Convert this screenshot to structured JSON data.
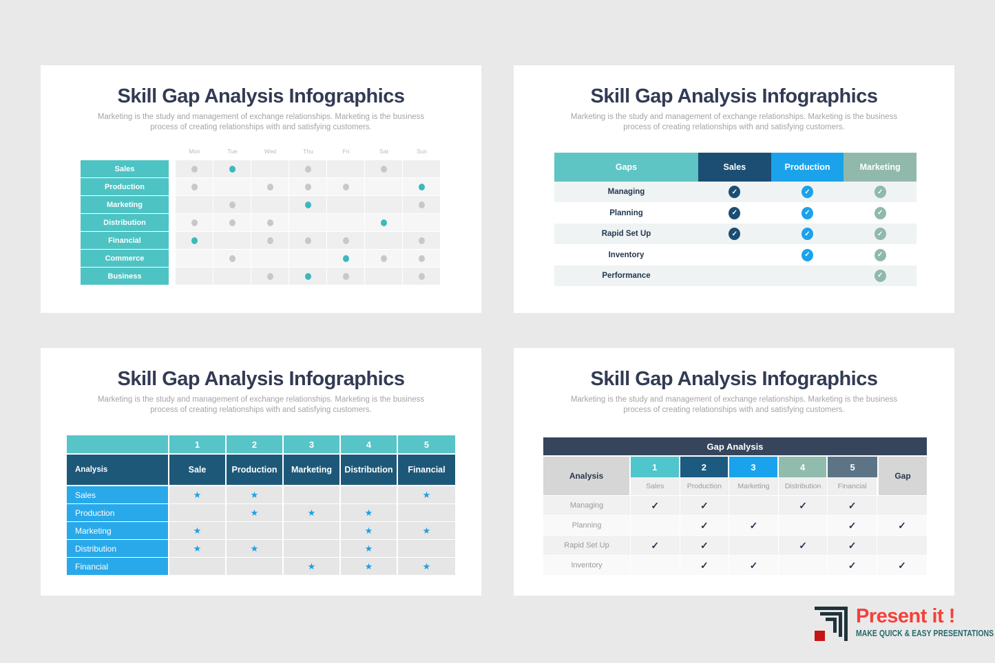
{
  "page": {
    "background": "#E9E9E9"
  },
  "shared": {
    "title": "Skill Gap Analysis Infographics",
    "subtitle": "Marketing is the study and management of exchange relationships. Marketing is the business process of creating relationships with and satisfying customers."
  },
  "logo": {
    "brand": "Present it !",
    "tagline": "MAKE QUICK & EASY PRESENTATIONS",
    "brand_color": "#F4403A",
    "tagline_color": "#27696B"
  },
  "chart_data": [
    {
      "type": "heatmap",
      "panel": "top-left",
      "title": "Skill Gap Analysis Infographics",
      "columns": [
        "Mon",
        "Tue",
        "Wed",
        "Thu",
        "Fri",
        "Sat",
        "Sun"
      ],
      "rows": [
        "Sales",
        "Production",
        "Marketing",
        "Distribution",
        "Financial",
        "Commerce",
        "Business"
      ],
      "cells": [
        [
          "gray",
          "teal",
          "",
          "gray",
          "",
          "gray",
          ""
        ],
        [
          "gray",
          "",
          "gray",
          "gray",
          "gray",
          "",
          "teal"
        ],
        [
          "",
          "gray",
          "",
          "teal",
          "",
          "",
          "gray"
        ],
        [
          "gray",
          "gray",
          "gray",
          "",
          "",
          "teal",
          ""
        ],
        [
          "teal",
          "",
          "gray",
          "gray",
          "gray",
          "",
          "gray"
        ],
        [
          "",
          "gray",
          "",
          "",
          "teal",
          "gray",
          "gray"
        ],
        [
          "",
          "",
          "gray",
          "teal",
          "gray",
          "",
          "gray"
        ]
      ],
      "colors": {
        "teal_dot": "#3CB9B9",
        "gray_dot": "#C8C8C8",
        "row_label_bg": "#4EC3C3"
      }
    },
    {
      "type": "table",
      "panel": "top-right",
      "title": "Skill Gap Analysis Infographics",
      "columns": [
        {
          "label": "Gaps",
          "color": "#5FC4C4"
        },
        {
          "label": "Sales",
          "color": "#1C4E73"
        },
        {
          "label": "Production",
          "color": "#1BA2EB"
        },
        {
          "label": "Marketing",
          "color": "#90B9AC"
        }
      ],
      "rows": [
        {
          "label": "Managing",
          "checks": [
            true,
            true,
            true
          ]
        },
        {
          "label": "Planning",
          "checks": [
            true,
            true,
            true
          ]
        },
        {
          "label": "Rapid Set Up",
          "checks": [
            true,
            true,
            true
          ]
        },
        {
          "label": "Inventory",
          "checks": [
            false,
            true,
            true
          ]
        },
        {
          "label": "Performance",
          "checks": [
            false,
            false,
            true
          ]
        }
      ]
    },
    {
      "type": "table",
      "panel": "bottom-left",
      "title": "Skill Gap Analysis Infographics",
      "corner": "Analysis",
      "numbers": [
        "1",
        "2",
        "3",
        "4",
        "5"
      ],
      "headers": [
        "Sale",
        "Production",
        "Marketing",
        "Distribution",
        "Financial"
      ],
      "rows": [
        {
          "label": "Sales",
          "stars": [
            true,
            true,
            false,
            false,
            true
          ]
        },
        {
          "label": "Production",
          "stars": [
            false,
            true,
            true,
            true,
            false
          ]
        },
        {
          "label": "Marketing",
          "stars": [
            true,
            false,
            false,
            true,
            true
          ]
        },
        {
          "label": "Distribution",
          "stars": [
            true,
            true,
            false,
            true,
            false
          ]
        },
        {
          "label": "Financial",
          "stars": [
            false,
            false,
            true,
            true,
            true
          ]
        }
      ],
      "colors": {
        "strip": "#57C4C8",
        "header": "#1E5878",
        "row_label": "#29A9E9",
        "cell": "#E6E6E6",
        "star": "#1F9FE0"
      }
    },
    {
      "type": "table",
      "panel": "bottom-right",
      "title": "Gap Analysis",
      "corner": "Analysis",
      "gap_label": "Gap",
      "columns": [
        {
          "num": "1",
          "label": "Sales",
          "color": "#4FC5CC"
        },
        {
          "num": "2",
          "label": "Production",
          "color": "#1D5A80"
        },
        {
          "num": "3",
          "label": "Marketing",
          "color": "#19A3EC"
        },
        {
          "num": "4",
          "label": "Distribution",
          "color": "#8FBCAD"
        },
        {
          "num": "5",
          "label": "Financial",
          "color": "#5C7486"
        }
      ],
      "rows": [
        {
          "label": "Managing",
          "checks": [
            true,
            true,
            false,
            true,
            true
          ],
          "gap": false
        },
        {
          "label": "Planning",
          "checks": [
            false,
            true,
            true,
            false,
            true
          ],
          "gap": true
        },
        {
          "label": "Rapid Set Up",
          "checks": [
            true,
            true,
            false,
            true,
            true
          ],
          "gap": false
        },
        {
          "label": "Inventory",
          "checks": [
            false,
            true,
            true,
            false,
            true
          ],
          "gap": true
        }
      ],
      "colors": {
        "bar": "#36455B",
        "corner_bg": "#D6D6D6",
        "check": "#22354D"
      }
    }
  ]
}
